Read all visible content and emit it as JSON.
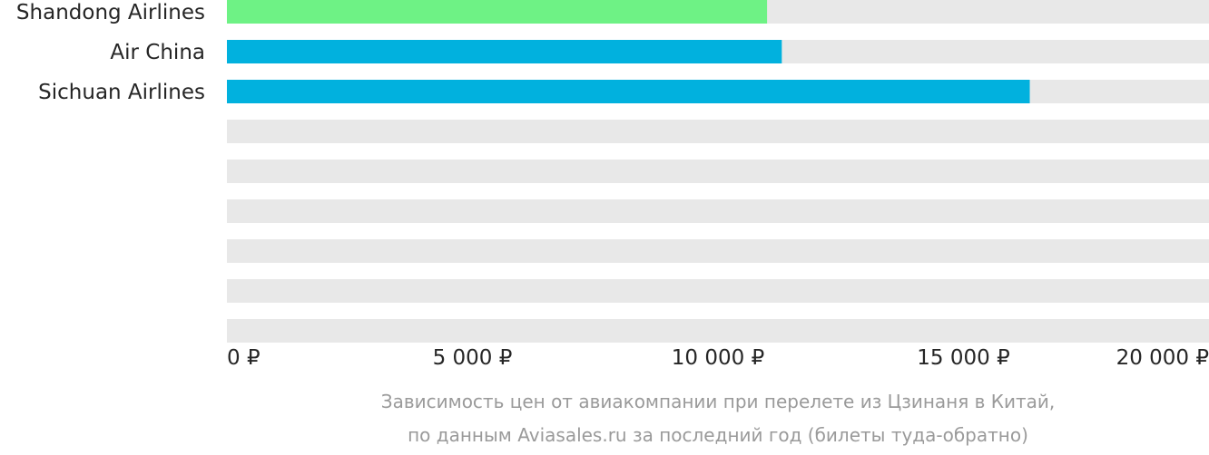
{
  "chart_data": {
    "type": "bar",
    "orientation": "horizontal",
    "categories": [
      "Shandong Airlines",
      "Air China",
      "Sichuan Airlines"
    ],
    "values": [
      11000,
      11300,
      16350
    ],
    "bar_colors": [
      "#6ef285",
      "#01b1de",
      "#01b1de"
    ],
    "track_color": "#e8e8e8",
    "empty_rows": 6,
    "xlim": [
      0,
      20000
    ],
    "x_ticks": [
      {
        "value": 0,
        "label": "0 ₽"
      },
      {
        "value": 5000,
        "label": "5 000 ₽"
      },
      {
        "value": 10000,
        "label": "10 000 ₽"
      },
      {
        "value": 15000,
        "label": "15 000 ₽"
      },
      {
        "value": 20000,
        "label": "20 000 ₽"
      }
    ],
    "grid": false
  },
  "caption": {
    "line1": "Зависимость цен от авиакомпании при перелете из Цзинаня в Китай,",
    "line2": "по данным Aviasales.ru за последний год (билеты туда-обратно)"
  }
}
